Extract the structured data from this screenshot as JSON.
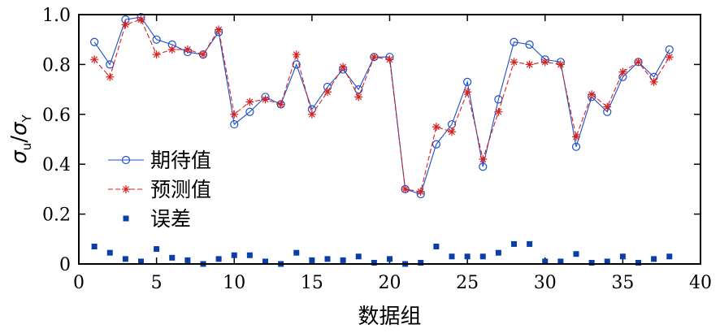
{
  "chart_data": {
    "type": "line",
    "xlabel": "数据组",
    "ylabel": "σu/σY",
    "ylabel_parts": {
      "main": "σ",
      "sub1": "u",
      "sep": "/",
      "main2": "σ",
      "sub2": "Y"
    },
    "xlim": [
      0,
      40
    ],
    "ylim": [
      0,
      1.0
    ],
    "xticks": [
      0,
      5,
      10,
      15,
      20,
      25,
      30,
      35,
      40
    ],
    "yticks": [
      0,
      0.2,
      0.4,
      0.6,
      0.8,
      1.0
    ],
    "xtick_labels": [
      "0",
      "5",
      "10",
      "15",
      "20",
      "25",
      "30",
      "35",
      "40"
    ],
    "ytick_labels": [
      "0",
      "0.2",
      "0.4",
      "0.6",
      "0.8",
      "1.0"
    ],
    "legend_position": "center-left",
    "x": [
      1,
      2,
      3,
      4,
      5,
      6,
      7,
      8,
      9,
      10,
      11,
      12,
      13,
      14,
      15,
      16,
      17,
      18,
      19,
      20,
      21,
      22,
      23,
      24,
      25,
      26,
      27,
      28,
      29,
      30,
      31,
      32,
      33,
      34,
      35,
      36,
      37,
      38
    ],
    "series": [
      {
        "name": "期待值",
        "color": "#1f4fc8",
        "marker": "circle",
        "values": [
          0.89,
          0.8,
          0.98,
          0.99,
          0.9,
          0.88,
          0.85,
          0.84,
          0.93,
          0.56,
          0.61,
          0.67,
          0.64,
          0.8,
          0.62,
          0.71,
          0.78,
          0.7,
          0.83,
          0.83,
          0.3,
          0.28,
          0.48,
          0.56,
          0.73,
          0.39,
          0.66,
          0.89,
          0.88,
          0.82,
          0.81,
          0.47,
          0.67,
          0.61,
          0.75,
          0.81,
          0.75,
          0.86
        ]
      },
      {
        "name": "预测值",
        "color": "#d62020",
        "marker": "star",
        "values": [
          0.82,
          0.75,
          0.96,
          0.98,
          0.84,
          0.86,
          0.86,
          0.84,
          0.94,
          0.6,
          0.65,
          0.66,
          0.64,
          0.84,
          0.6,
          0.69,
          0.79,
          0.67,
          0.83,
          0.82,
          0.3,
          0.29,
          0.55,
          0.53,
          0.69,
          0.42,
          0.61,
          0.81,
          0.8,
          0.81,
          0.8,
          0.51,
          0.68,
          0.63,
          0.77,
          0.81,
          0.73,
          0.83
        ]
      },
      {
        "name": "误差",
        "color": "#0a3fa8",
        "marker": "square",
        "values": [
          0.07,
          0.045,
          0.02,
          0.01,
          0.06,
          0.025,
          0.015,
          0.0,
          0.02,
          0.035,
          0.035,
          0.01,
          0.0,
          0.045,
          0.015,
          0.02,
          0.015,
          0.03,
          0.005,
          0.02,
          0.0,
          0.005,
          0.07,
          0.03,
          0.03,
          0.03,
          0.045,
          0.08,
          0.08,
          0.01,
          0.01,
          0.04,
          0.005,
          0.01,
          0.03,
          0.005,
          0.02,
          0.03
        ]
      }
    ]
  }
}
